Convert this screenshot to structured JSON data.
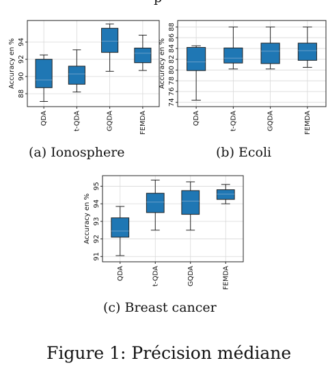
{
  "figure_caption": "Figure 1: Précision médiane",
  "top_partial_text": "p",
  "chart_data": [
    {
      "type": "box",
      "caption": "(a) Ionosphere",
      "ylabel": "Accuracy en %",
      "categories": [
        "QDA",
        "t-QDA",
        "GQDA",
        "FEMDA"
      ],
      "yticks": [
        88,
        90,
        92,
        94
      ],
      "ylim": [
        86.5,
        96.5
      ],
      "grid": true,
      "color": "#1f77b4",
      "boxes": [
        {
          "min": 87.1,
          "q1": 88.7,
          "median": 89.6,
          "q3": 92.0,
          "max": 92.5
        },
        {
          "min": 88.2,
          "q1": 89.1,
          "median": 90.3,
          "q3": 91.2,
          "max": 93.1
        },
        {
          "min": 90.6,
          "q1": 92.8,
          "median": 94.1,
          "q3": 95.6,
          "max": 96.1
        },
        {
          "min": 90.7,
          "q1": 91.6,
          "median": 92.7,
          "q3": 93.3,
          "max": 94.8
        }
      ]
    },
    {
      "type": "box",
      "caption": "(b) Ecoli",
      "ylabel": "Accuracy en %",
      "categories": [
        "QDA",
        "t-QDA",
        "GQDA",
        "FEMDA"
      ],
      "yticks": [
        74,
        76,
        78,
        80,
        82,
        84,
        86,
        88
      ],
      "ylim": [
        73.2,
        89.2
      ],
      "grid": true,
      "color": "#1f77b4",
      "boxes": [
        {
          "min": 74.4,
          "q1": 79.9,
          "median": 81.5,
          "q3": 84.2,
          "max": 84.5
        },
        {
          "min": 80.2,
          "q1": 81.3,
          "median": 82.2,
          "q3": 84.1,
          "max": 88.0
        },
        {
          "min": 80.2,
          "q1": 81.2,
          "median": 83.5,
          "q3": 85.0,
          "max": 88.0
        },
        {
          "min": 80.5,
          "q1": 81.8,
          "median": 83.6,
          "q3": 85.0,
          "max": 88.0
        }
      ]
    },
    {
      "type": "box",
      "caption": "(c) Breast cancer",
      "ylabel": "Accuracy en %",
      "categories": [
        "QDA",
        "t-QDA",
        "GQDA",
        "FEMDA"
      ],
      "yticks": [
        91,
        92,
        93,
        94,
        95
      ],
      "ylim": [
        90.7,
        95.6
      ],
      "grid": true,
      "color": "#1f77b4",
      "boxes": [
        {
          "min": 91.05,
          "q1": 92.1,
          "median": 92.45,
          "q3": 93.2,
          "max": 93.85
        },
        {
          "min": 92.5,
          "q1": 93.5,
          "median": 94.1,
          "q3": 94.6,
          "max": 95.35
        },
        {
          "min": 92.5,
          "q1": 93.4,
          "median": 94.15,
          "q3": 94.75,
          "max": 95.25
        },
        {
          "min": 94.0,
          "q1": 94.25,
          "median": 94.55,
          "q3": 94.8,
          "max": 95.1
        }
      ]
    }
  ]
}
